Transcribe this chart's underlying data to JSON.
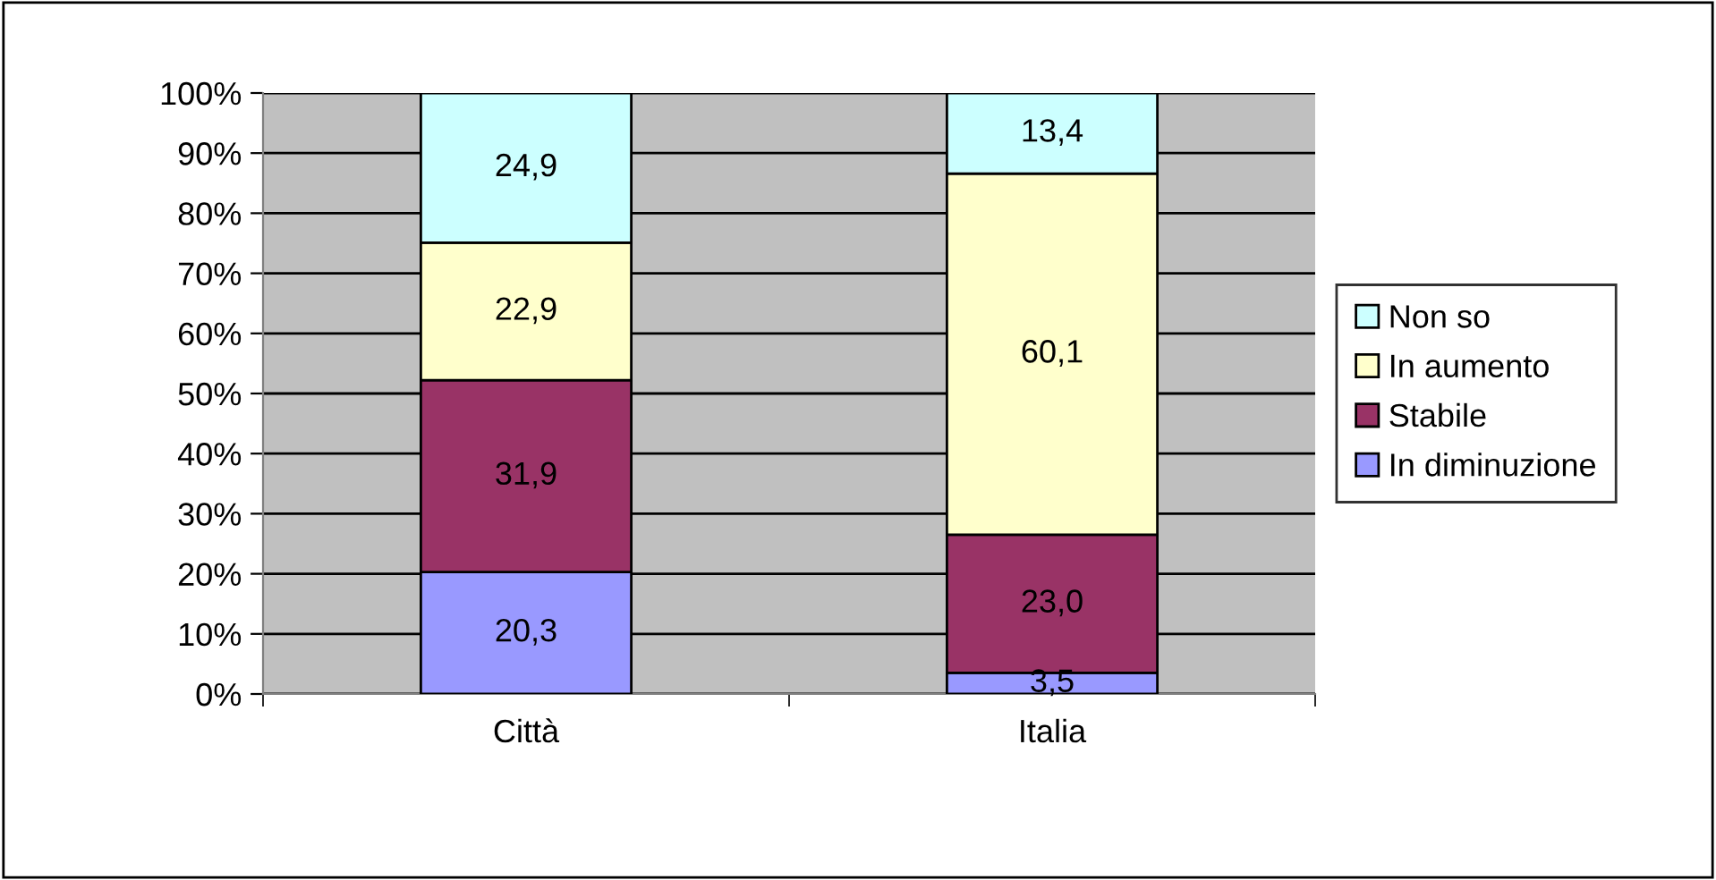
{
  "chart_data": {
    "type": "bar",
    "stacked": true,
    "categories": [
      "Città",
      "Italia"
    ],
    "series": [
      {
        "name": "In diminuzione",
        "color": "#9999ff",
        "values": [
          20.3,
          3.5
        ],
        "value_labels": [
          "20,3",
          "3,5"
        ]
      },
      {
        "name": "Stabile",
        "color": "#993366",
        "values": [
          31.9,
          23.0
        ],
        "value_labels": [
          "31,9",
          "23,0"
        ]
      },
      {
        "name": "In aumento",
        "color": "#ffffcc",
        "values": [
          22.9,
          60.1
        ],
        "value_labels": [
          "22,9",
          "60,1"
        ]
      },
      {
        "name": "Non so",
        "color": "#ccffff",
        "values": [
          24.9,
          13.4
        ],
        "value_labels": [
          "24,9",
          "13,4"
        ]
      }
    ],
    "ylim": [
      0,
      100
    ],
    "yticks": [
      {
        "value": 0,
        "label": "0%"
      },
      {
        "value": 10,
        "label": "10%"
      },
      {
        "value": 20,
        "label": "20%"
      },
      {
        "value": 30,
        "label": "30%"
      },
      {
        "value": 40,
        "label": "40%"
      },
      {
        "value": 50,
        "label": "50%"
      },
      {
        "value": 60,
        "label": "60%"
      },
      {
        "value": 70,
        "label": "70%"
      },
      {
        "value": 80,
        "label": "80%"
      },
      {
        "value": 90,
        "label": "90%"
      },
      {
        "value": 100,
        "label": "100%"
      }
    ],
    "grid": "y",
    "legend": "right"
  }
}
